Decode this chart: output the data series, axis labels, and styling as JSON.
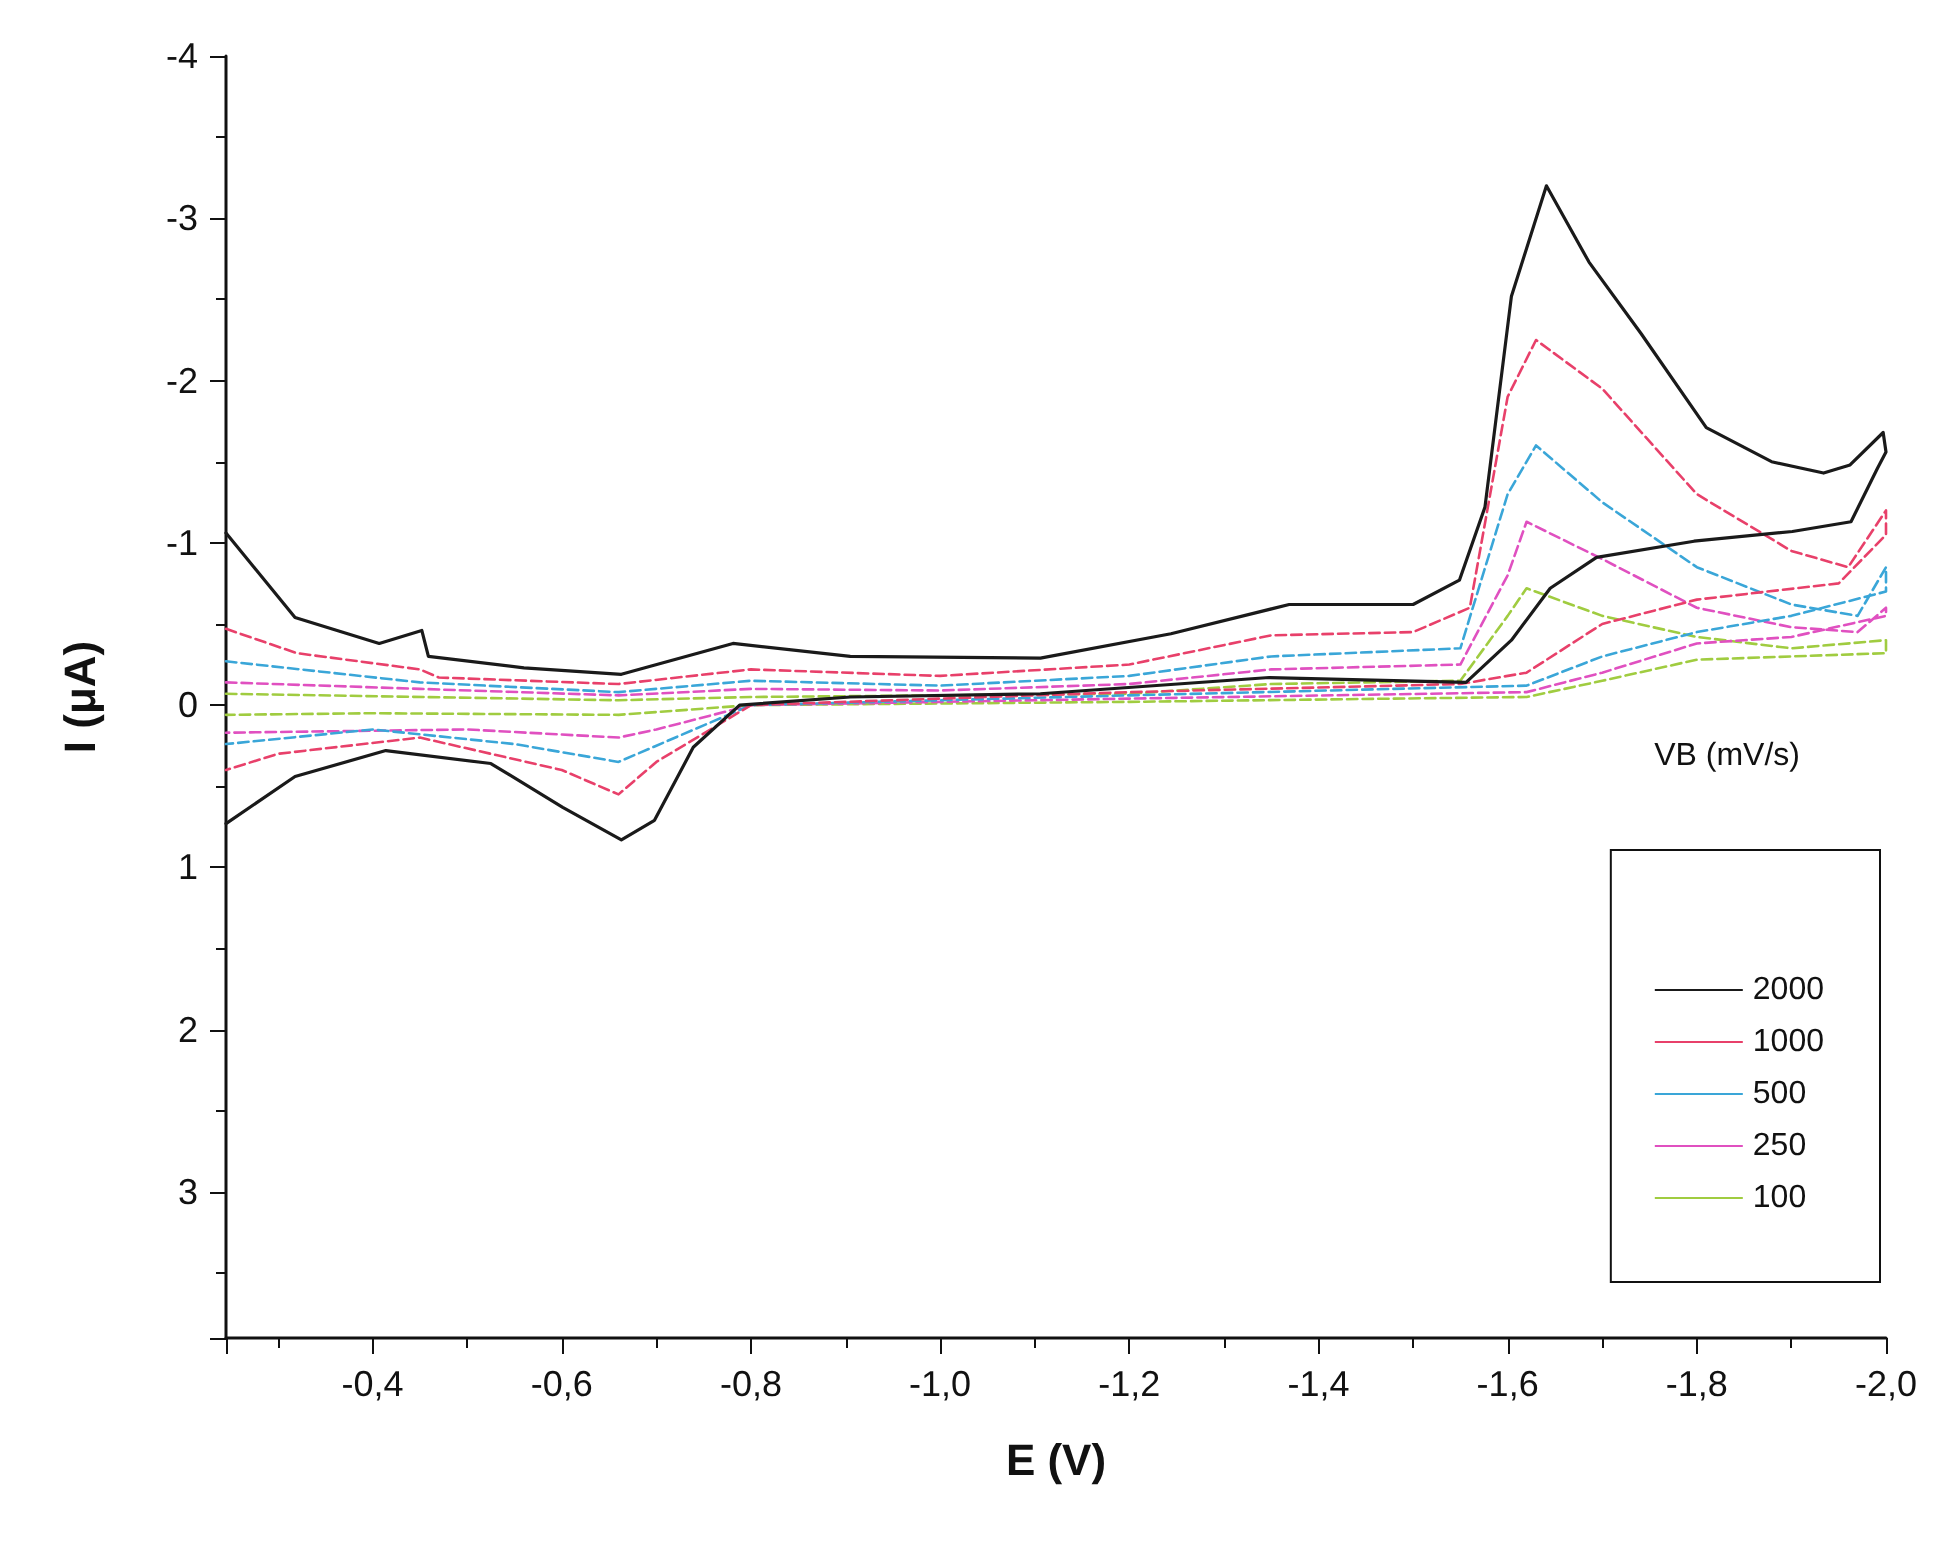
{
  "chart_data": {
    "type": "line",
    "xlabel": "E (V)",
    "ylabel": "I (μA)",
    "legend_title": "VB (mV/s)",
    "legend": "bottom right",
    "grid": false,
    "marker": "none",
    "xlim": [
      -0.245,
      -2.0
    ],
    "xticks": [
      {
        "value": -0.4,
        "label": "-0,4"
      },
      {
        "value": -0.6,
        "label": "-0,6"
      },
      {
        "value": -0.8,
        "label": "-0,8"
      },
      {
        "value": -1.0,
        "label": "-1,0"
      },
      {
        "value": -1.2,
        "label": "-1,2"
      },
      {
        "value": -1.4,
        "label": "-1,4"
      },
      {
        "value": -1.6,
        "label": "-1,6"
      },
      {
        "value": -1.8,
        "label": "-1,8"
      },
      {
        "value": -2.0,
        "label": "-2,0"
      }
    ],
    "ylim": [
      3.9,
      -4
    ],
    "yticks": [
      -4,
      -3,
      -2,
      -1,
      0,
      1,
      2,
      3
    ],
    "series": [
      {
        "name": "2000",
        "color": "#1a1a1a",
        "line_style": "solid",
        "x": [
          -0.245,
          -0.318,
          -0.407,
          -0.452,
          -0.459,
          -0.56,
          -0.663,
          -0.781,
          -0.905,
          -1.106,
          -1.244,
          -1.369,
          -1.5,
          -1.549,
          -1.576,
          -1.604,
          -1.641,
          -1.686,
          -1.741,
          -1.81,
          -1.879,
          -1.934,
          -1.962,
          -1.997,
          -2.0,
          -1.991,
          -1.963,
          -1.901,
          -1.797,
          -1.694,
          -1.645,
          -1.604,
          -1.556,
          -1.348,
          -1.106,
          -0.905,
          -0.788,
          -0.739,
          -0.698,
          -0.663,
          -0.601,
          -0.525,
          -0.414,
          -0.318,
          -0.245
        ],
        "values": [
          -1.06,
          -0.54,
          -0.38,
          -0.46,
          -0.3,
          -0.23,
          -0.19,
          -0.38,
          -0.3,
          -0.29,
          -0.44,
          -0.62,
          -0.62,
          -0.77,
          -1.22,
          -2.52,
          -3.2,
          -2.73,
          -2.29,
          -1.71,
          -1.5,
          -1.43,
          -1.48,
          -1.68,
          -1.56,
          -1.46,
          -1.13,
          -1.07,
          -1.01,
          -0.91,
          -0.72,
          -0.4,
          -0.14,
          -0.17,
          -0.07,
          -0.05,
          0.0,
          0.26,
          0.71,
          0.83,
          0.63,
          0.36,
          0.28,
          0.44,
          0.73
        ]
      },
      {
        "name": "1000",
        "color": "#e8406a",
        "line_style": "dashed",
        "x": [
          -0.245,
          -0.32,
          -0.45,
          -0.47,
          -0.66,
          -0.8,
          -1.0,
          -1.2,
          -1.35,
          -1.5,
          -1.56,
          -1.6,
          -1.63,
          -1.7,
          -1.8,
          -1.9,
          -1.96,
          -2.0,
          -2.0,
          -1.95,
          -1.8,
          -1.7,
          -1.62,
          -1.55,
          -1.2,
          -0.8,
          -0.7,
          -0.66,
          -0.6,
          -0.45,
          -0.3,
          -0.245
        ],
        "values": [
          -0.47,
          -0.32,
          -0.22,
          -0.17,
          -0.13,
          -0.22,
          -0.18,
          -0.25,
          -0.43,
          -0.45,
          -0.6,
          -1.9,
          -2.25,
          -1.95,
          -1.3,
          -0.95,
          -0.85,
          -1.2,
          -1.05,
          -0.75,
          -0.65,
          -0.5,
          -0.2,
          -0.13,
          -0.08,
          0.0,
          0.35,
          0.55,
          0.4,
          0.2,
          0.3,
          0.4
        ]
      },
      {
        "name": "500",
        "color": "#3aa6d8",
        "line_style": "dashed",
        "x": [
          -0.245,
          -0.45,
          -0.66,
          -0.8,
          -1.0,
          -1.2,
          -1.35,
          -1.55,
          -1.6,
          -1.63,
          -1.7,
          -1.8,
          -1.9,
          -1.97,
          -2.0,
          -2.0,
          -1.9,
          -1.8,
          -1.7,
          -1.62,
          -1.2,
          -0.8,
          -0.7,
          -0.66,
          -0.55,
          -0.4,
          -0.245
        ],
        "values": [
          -0.27,
          -0.14,
          -0.08,
          -0.15,
          -0.12,
          -0.18,
          -0.3,
          -0.35,
          -1.3,
          -1.6,
          -1.25,
          -0.85,
          -0.62,
          -0.55,
          -0.85,
          -0.7,
          -0.55,
          -0.45,
          -0.3,
          -0.12,
          -0.06,
          0.0,
          0.25,
          0.35,
          0.24,
          0.15,
          0.24
        ]
      },
      {
        "name": "250",
        "color": "#e050c0",
        "line_style": "dashed",
        "x": [
          -0.245,
          -0.45,
          -0.66,
          -0.8,
          -1.0,
          -1.2,
          -1.35,
          -1.55,
          -1.6,
          -1.62,
          -1.7,
          -1.8,
          -1.9,
          -1.97,
          -2.0,
          -2.0,
          -1.9,
          -1.8,
          -1.7,
          -1.62,
          -1.2,
          -0.8,
          -0.7,
          -0.66,
          -0.5,
          -0.245
        ],
        "values": [
          -0.14,
          -0.1,
          -0.06,
          -0.1,
          -0.09,
          -0.13,
          -0.22,
          -0.25,
          -0.8,
          -1.13,
          -0.9,
          -0.6,
          -0.48,
          -0.45,
          -0.6,
          -0.55,
          -0.42,
          -0.38,
          -0.2,
          -0.08,
          -0.04,
          0.0,
          0.15,
          0.2,
          0.15,
          0.17
        ]
      },
      {
        "name": "100",
        "color": "#a0cc40",
        "line_style": "dashed",
        "x": [
          -0.245,
          -0.66,
          -0.8,
          -1.2,
          -1.35,
          -1.55,
          -1.6,
          -1.62,
          -1.7,
          -1.8,
          -1.9,
          -2.0,
          -2.0,
          -1.8,
          -1.7,
          -1.62,
          -1.2,
          -0.8,
          -0.66,
          -0.4,
          -0.245
        ],
        "values": [
          -0.07,
          -0.03,
          -0.05,
          -0.07,
          -0.13,
          -0.15,
          -0.55,
          -0.72,
          -0.55,
          -0.42,
          -0.35,
          -0.4,
          -0.32,
          -0.28,
          -0.15,
          -0.05,
          -0.02,
          0.0,
          0.06,
          0.05,
          0.06
        ]
      }
    ]
  }
}
